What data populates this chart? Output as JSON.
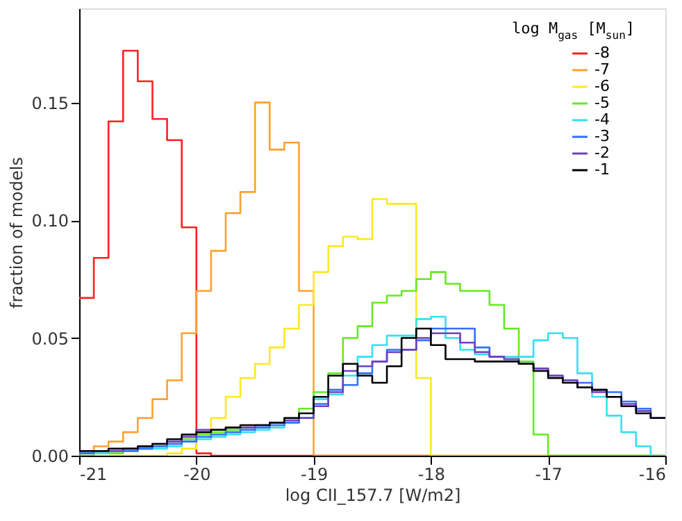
{
  "chart_data": {
    "type": "histogram",
    "xlabel": "log CII_157.7  [W/m2]",
    "ylabel": "fraction of models",
    "legend_title": "log M$_{gas}$ [M$_{sun}$]",
    "bins": [
      -21,
      -20.875,
      -20.75,
      -20.625,
      -20.5,
      -20.375,
      -20.25,
      -20.125,
      -20,
      -19.875,
      -19.75,
      -19.625,
      -19.5,
      -19.375,
      -19.25,
      -19.125,
      -19,
      -18.875,
      -18.75,
      -18.625,
      -18.5,
      -18.375,
      -18.25,
      -18.125,
      -18,
      -17.875,
      -17.75,
      -17.625,
      -17.5,
      -17.375,
      -17.25,
      -17.125,
      -17,
      -16.875,
      -16.75,
      -16.625,
      -16.5,
      -16.375,
      -16.25,
      -16.125,
      -16
    ],
    "series": [
      {
        "name": "-8",
        "color": "#ff2020",
        "values": [
          0.067,
          0.084,
          0.142,
          0.172,
          0.159,
          0.143,
          0.134,
          0.097,
          0.001,
          0,
          0,
          0,
          0,
          0,
          0,
          0,
          0,
          0,
          0,
          0,
          0,
          0,
          0,
          0,
          0,
          0,
          0,
          0,
          0,
          0,
          0,
          0,
          0,
          0,
          0,
          0,
          0,
          0,
          0,
          0
        ]
      },
      {
        "name": "-7",
        "color": "#ffa030",
        "values": [
          0.002,
          0.004,
          0.006,
          0.01,
          0.016,
          0.024,
          0.032,
          0.052,
          0.07,
          0.087,
          0.103,
          0.112,
          0.15,
          0.13,
          0.133,
          0.07,
          0,
          0,
          0,
          0,
          0,
          0,
          0,
          0,
          0,
          0,
          0,
          0,
          0,
          0,
          0,
          0,
          0,
          0,
          0,
          0,
          0,
          0,
          0,
          0
        ]
      },
      {
        "name": "-6",
        "color": "#ffe820",
        "values": [
          0,
          0,
          0,
          0,
          0,
          0,
          0.001,
          0.003,
          0.01,
          0.016,
          0.025,
          0.033,
          0.039,
          0.046,
          0.054,
          0.064,
          0.078,
          0.089,
          0.093,
          0.092,
          0.109,
          0.107,
          0.107,
          0.033,
          0,
          0,
          0,
          0,
          0,
          0,
          0,
          0,
          0,
          0,
          0,
          0,
          0,
          0,
          0,
          0
        ]
      },
      {
        "name": "-5",
        "color": "#66e822",
        "values": [
          0,
          0.001,
          0.001,
          0.002,
          0.003,
          0.004,
          0.005,
          0.007,
          0.009,
          0.01,
          0.011,
          0.012,
          0.012,
          0.014,
          0.016,
          0.02,
          0.027,
          0.035,
          0.05,
          0.055,
          0.065,
          0.068,
          0.07,
          0.075,
          0.078,
          0.073,
          0.07,
          0.07,
          0.064,
          0.054,
          0.04,
          0.009,
          0,
          0,
          0,
          0,
          0,
          0,
          0,
          0
        ]
      },
      {
        "name": "-4",
        "color": "#33e0f0",
        "values": [
          0.001,
          0.001,
          0.002,
          0.002,
          0.003,
          0.003,
          0.004,
          0.006,
          0.007,
          0.008,
          0.009,
          0.01,
          0.011,
          0.012,
          0.014,
          0.016,
          0.024,
          0.026,
          0.034,
          0.042,
          0.047,
          0.051,
          0.051,
          0.058,
          0.059,
          0.05,
          0.045,
          0.043,
          0.042,
          0.042,
          0.042,
          0.049,
          0.052,
          0.05,
          0.035,
          0.025,
          0.017,
          0.01,
          0.004,
          0
        ]
      },
      {
        "name": "-3",
        "color": "#3070ff",
        "values": [
          0.001,
          0.002,
          0.002,
          0.002,
          0.003,
          0.004,
          0.005,
          0.006,
          0.008,
          0.009,
          0.01,
          0.011,
          0.012,
          0.013,
          0.014,
          0.016,
          0.022,
          0.028,
          0.03,
          0.035,
          0.04,
          0.045,
          0.045,
          0.049,
          0.054,
          0.054,
          0.054,
          0.046,
          0.042,
          0.041,
          0.039,
          0.037,
          0.034,
          0.032,
          0.031,
          0.028,
          0.027,
          0.023,
          0.02,
          0.016
        ]
      },
      {
        "name": "-2",
        "color": "#7040c0",
        "values": [
          0.002,
          0.002,
          0.002,
          0.003,
          0.004,
          0.005,
          0.006,
          0.008,
          0.011,
          0.011,
          0.012,
          0.012,
          0.013,
          0.014,
          0.015,
          0.016,
          0.021,
          0.027,
          0.036,
          0.038,
          0.04,
          0.044,
          0.045,
          0.05,
          0.052,
          0.052,
          0.048,
          0.044,
          0.042,
          0.041,
          0.039,
          0.037,
          0.034,
          0.032,
          0.029,
          0.027,
          0.025,
          0.022,
          0.019,
          0.016
        ]
      },
      {
        "name": "-1",
        "color": "#000000",
        "values": [
          0.002,
          0.002,
          0.003,
          0.003,
          0.004,
          0.005,
          0.007,
          0.009,
          0.01,
          0.011,
          0.012,
          0.013,
          0.013,
          0.014,
          0.016,
          0.018,
          0.025,
          0.034,
          0.039,
          0.034,
          0.031,
          0.038,
          0.05,
          0.054,
          0.047,
          0.041,
          0.041,
          0.04,
          0.04,
          0.04,
          0.039,
          0.036,
          0.033,
          0.031,
          0.029,
          0.028,
          0.025,
          0.021,
          0.018,
          0.016
        ]
      }
    ],
    "xlim": [
      -21,
      -16
    ],
    "xticks": [
      -21,
      -20,
      -19,
      -18,
      -17,
      -16
    ],
    "ylim": [
      0,
      0.19
    ],
    "yticks": [
      {
        "value": 0,
        "label": "0.00"
      },
      {
        "value": 0.05,
        "label": "0.05"
      },
      {
        "value": 0.1,
        "label": "0.10"
      },
      {
        "value": 0.15,
        "label": "0.15"
      }
    ],
    "legend": "top right",
    "grid": false
  }
}
